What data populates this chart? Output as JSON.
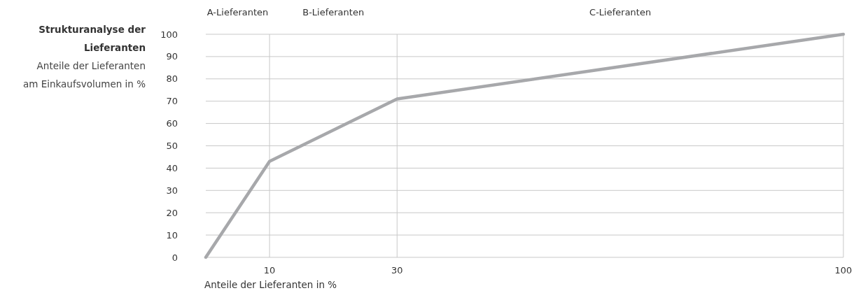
{
  "chart_data": {
    "type": "line",
    "title": "Strukturanalyse der Lieferanten",
    "subtitle": "Anteile der Lieferanten am Einkaufsvolumen in %",
    "xlabel": "Anteile der Lieferanten in %",
    "x": [
      0,
      10,
      30,
      100
    ],
    "series": [
      {
        "color": "#a7a8ab",
        "values": [
          0,
          43,
          71,
          100
        ]
      }
    ],
    "xlim": [
      0,
      100
    ],
    "xticks": [
      10,
      30,
      100
    ],
    "ylim": [
      0,
      100
    ],
    "yticks": [
      0,
      10,
      20,
      30,
      40,
      50,
      60,
      70,
      80,
      90,
      100
    ],
    "grid": true,
    "marker": "none",
    "line_style": "solid",
    "annotations": [
      "A-Lieferanten",
      "B-Lieferanten",
      "C-Lieferanten"
    ]
  }
}
